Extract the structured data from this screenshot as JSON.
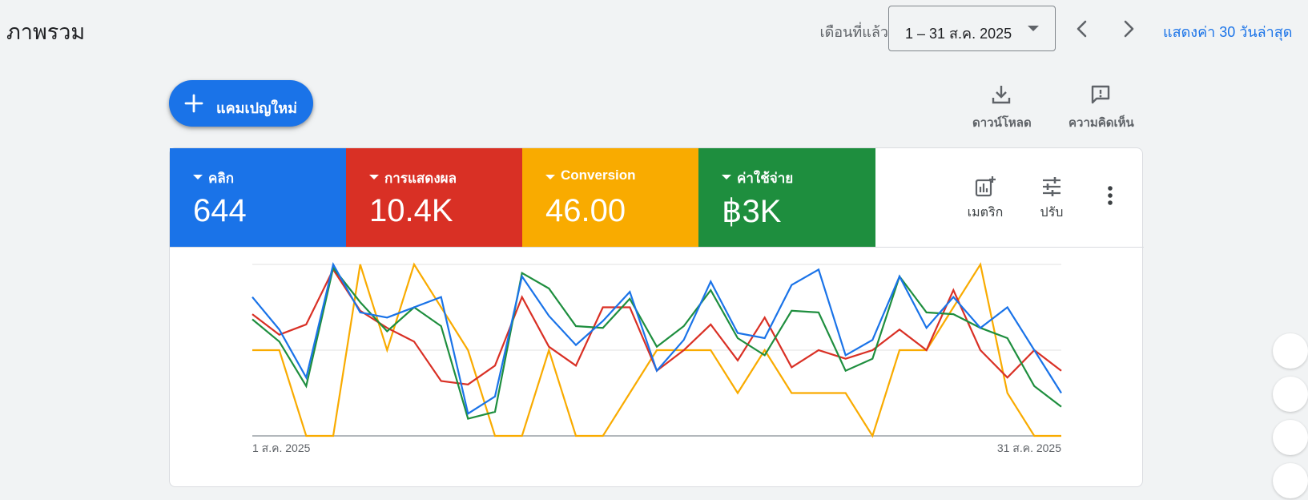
{
  "header": {
    "title": "ภาพรวม",
    "date_range_label": "เดือนที่แล้ว",
    "date_range_value": "1 – 31 ส.ค. 2025",
    "recent_link": "แสดงค่า 30 วันล่าสุด"
  },
  "toolbar": {
    "new_campaign_label": "แคมเปญใหม่",
    "download_label": "ดาวน์โหลด",
    "feedback_label": "ความคิดเห็น"
  },
  "scorecards": [
    {
      "label": "คลิก",
      "value": "644",
      "color": "#1a73e8"
    },
    {
      "label": "การแสดงผล",
      "value": "10.4K",
      "color": "#d93025"
    },
    {
      "label": "Conversion",
      "value": "46.00",
      "color": "#f9ab00"
    },
    {
      "label": "ค่าใช้จ่าย",
      "value": "฿3K",
      "color": "#1e8e3e"
    }
  ],
  "card_tools": {
    "metrics_label": "เมตริก",
    "adjust_label": "ปรับ"
  },
  "chart_data": {
    "type": "line",
    "x": [
      1,
      2,
      3,
      4,
      5,
      6,
      7,
      8,
      9,
      10,
      11,
      12,
      13,
      14,
      15,
      16,
      17,
      18,
      19,
      20,
      21,
      22,
      23,
      24,
      25,
      26,
      27,
      28,
      29,
      30,
      31
    ],
    "x_tick_labels": [
      "1 ส.ค. 2025",
      "31 ส.ค. 2025"
    ],
    "ylim": [
      0,
      1
    ],
    "gridlines": [
      0,
      0.5,
      1
    ],
    "normalized": true,
    "series": [
      {
        "name": "คลิก",
        "color": "#1a73e8",
        "values": [
          0.81,
          0.62,
          0.34,
          1.0,
          0.72,
          0.69,
          0.75,
          0.81,
          0.13,
          0.23,
          0.93,
          0.7,
          0.53,
          0.67,
          0.84,
          0.38,
          0.56,
          0.9,
          0.6,
          0.57,
          0.88,
          0.97,
          0.47,
          0.56,
          0.93,
          0.63,
          0.81,
          0.63,
          0.75,
          0.5,
          0.25
        ]
      },
      {
        "name": "การแสดงผล",
        "color": "#d93025",
        "values": [
          0.71,
          0.59,
          0.65,
          0.97,
          0.73,
          0.63,
          0.55,
          0.32,
          0.3,
          0.41,
          0.81,
          0.52,
          0.41,
          0.75,
          0.75,
          0.38,
          0.5,
          0.65,
          0.44,
          0.69,
          0.4,
          0.5,
          0.45,
          0.5,
          0.62,
          0.5,
          0.85,
          0.5,
          0.34,
          0.5,
          0.38
        ]
      },
      {
        "name": "Conversion",
        "color": "#f9ab00",
        "values": [
          0.5,
          0.5,
          0.0,
          0.0,
          1.0,
          0.5,
          1.0,
          0.75,
          0.5,
          0.0,
          0.0,
          0.5,
          0.0,
          0.0,
          0.25,
          0.5,
          0.5,
          0.5,
          0.25,
          0.5,
          0.25,
          0.25,
          0.25,
          0.0,
          0.5,
          0.5,
          0.75,
          1.0,
          0.25,
          0.0,
          0.0
        ]
      },
      {
        "name": "ค่าใช้จ่าย",
        "color": "#1e8e3e",
        "values": [
          0.68,
          0.55,
          0.29,
          0.98,
          0.78,
          0.61,
          0.75,
          0.64,
          0.1,
          0.14,
          0.95,
          0.86,
          0.64,
          0.63,
          0.8,
          0.52,
          0.64,
          0.85,
          0.57,
          0.47,
          0.73,
          0.72,
          0.38,
          0.45,
          0.93,
          0.72,
          0.71,
          0.63,
          0.57,
          0.29,
          0.17
        ]
      }
    ]
  }
}
